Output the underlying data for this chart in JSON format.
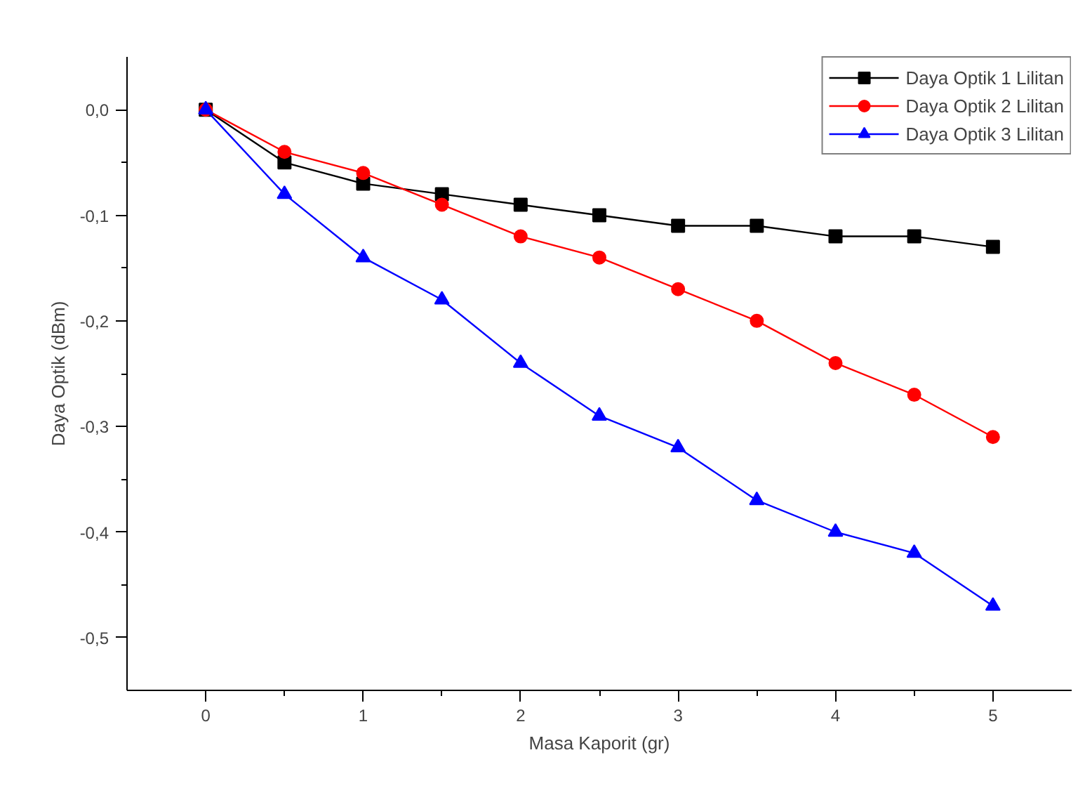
{
  "chart_data": {
    "type": "line",
    "xlabel": "Masa Kaporit (gr)",
    "ylabel": "Daya Optik (dBm)",
    "x": [
      0,
      0.5,
      1,
      1.5,
      2,
      2.5,
      3,
      3.5,
      4,
      4.5,
      5
    ],
    "series": [
      {
        "name": "Daya Optik 1 Lilitan",
        "color": "#000000",
        "marker": "square",
        "values": [
          0,
          -0.05,
          -0.07,
          -0.08,
          -0.09,
          -0.1,
          -0.11,
          -0.11,
          -0.12,
          -0.12,
          -0.13
        ]
      },
      {
        "name": "Daya Optik 2 Lilitan",
        "color": "#ff0000",
        "marker": "circle",
        "values": [
          0,
          -0.04,
          -0.06,
          -0.09,
          -0.12,
          -0.14,
          -0.17,
          -0.2,
          -0.24,
          -0.27,
          -0.31
        ]
      },
      {
        "name": "Daya Optik 3 Lilitan",
        "color": "#0000ff",
        "marker": "triangle",
        "values": [
          0,
          -0.08,
          -0.14,
          -0.18,
          -0.24,
          -0.29,
          -0.32,
          -0.37,
          -0.4,
          -0.42,
          -0.47
        ]
      }
    ],
    "xlim": [
      -0.5,
      5.5
    ],
    "xticks": [
      0,
      1,
      2,
      3,
      4,
      5
    ],
    "ylim": [
      -0.55,
      0.05
    ],
    "yticks": [
      {
        "value": 0,
        "label": "0,0"
      },
      {
        "value": -0.1,
        "label": "-0,1"
      },
      {
        "value": -0.2,
        "label": "-0,2"
      },
      {
        "value": -0.3,
        "label": "-0,3"
      },
      {
        "value": -0.4,
        "label": "-0,4"
      },
      {
        "value": -0.5,
        "label": "-0,5"
      }
    ],
    "legend": "top right",
    "grid": false,
    "line_style": "solid"
  }
}
